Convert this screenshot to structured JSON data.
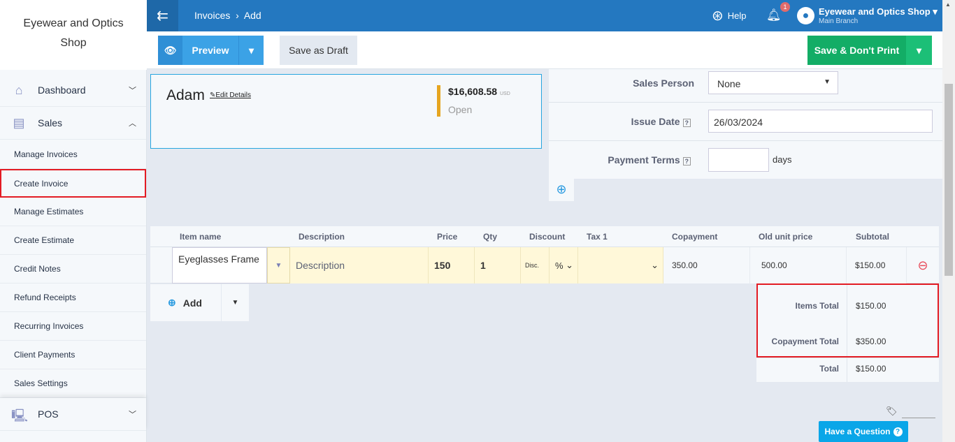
{
  "sidebar": {
    "brand": "Eyewear and Optics Shop",
    "sections": [
      {
        "label": "Dashboard",
        "icon": "home-icon"
      },
      {
        "label": "Sales",
        "icon": "receipt-icon"
      },
      {
        "label": "POS",
        "icon": "computer-icon"
      }
    ],
    "sales_items": [
      "Manage Invoices",
      "Create Invoice",
      "Manage Estimates",
      "Create Estimate",
      "Credit Notes",
      "Refund Receipts",
      "Recurring Invoices",
      "Client Payments",
      "Sales Settings"
    ],
    "active": "Create Invoice"
  },
  "topbar": {
    "breadcrumb": [
      "Invoices",
      "Add"
    ],
    "help": "Help",
    "notifications": "1",
    "account": "Eyewear and Optics Shop",
    "branch": "Main Branch"
  },
  "toolbar": {
    "preview": "Preview",
    "draft": "Save as Draft",
    "save": "Save & Don't Print"
  },
  "client": {
    "name": "Adam",
    "edit": "Edit Details",
    "balance": "$16,608.58",
    "currency": "USD",
    "status": "Open"
  },
  "meta": {
    "sales_person_label": "Sales Person",
    "sales_person": "None",
    "issue_date_label": "Issue Date",
    "issue_date": "26/03/2024",
    "payment_terms_label": "Payment Terms",
    "payment_terms": "",
    "days": "days"
  },
  "table": {
    "headers": [
      "Item name",
      "Description",
      "Price",
      "Qty",
      "Discount",
      "Tax 1",
      "Copayment",
      "Old unit price",
      "Subtotal"
    ],
    "row": {
      "item": "Eyeglasses Frame",
      "description": "Description",
      "price": "150",
      "qty": "1",
      "discount": "Disc.",
      "discount_type": "%",
      "tax": "",
      "copayment": "350.00",
      "old_price": "500.00",
      "subtotal": "$150.00"
    },
    "add": "Add"
  },
  "totals": {
    "items_label": "Items Total",
    "items": "$150.00",
    "copay_label": "Copayment Total",
    "copay": "$350.00",
    "total_label": "Total",
    "total": "$150.00"
  },
  "help_chat": "Have a Question",
  "colors": {
    "primary": "#2478c0",
    "save": "#1bb56d",
    "highlight": "#e31b23",
    "accent": "#e6a520"
  }
}
